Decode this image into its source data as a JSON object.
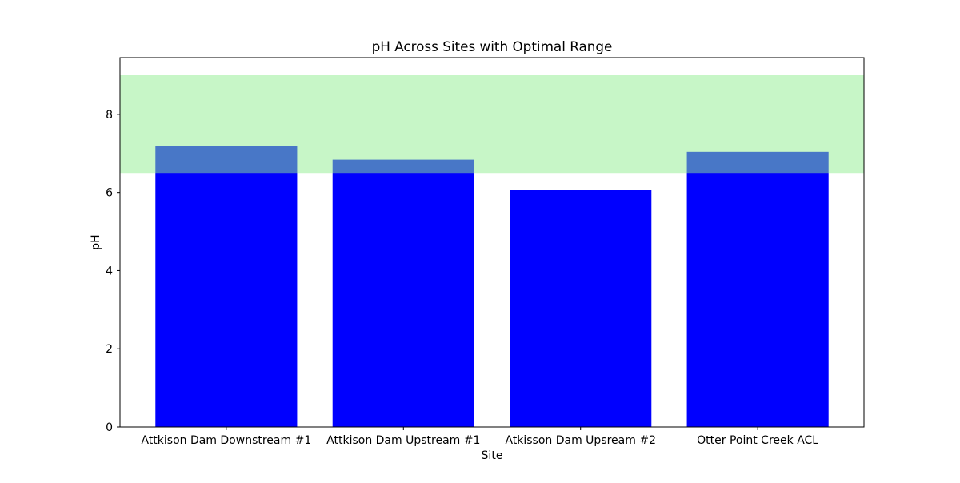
{
  "chart_data": {
    "type": "bar",
    "title": "pH Across Sites with Optimal Range",
    "xlabel": "Site",
    "ylabel": "pH",
    "categories": [
      "Attkison Dam Downstream #1",
      "Attkison Dam Upstream #1",
      "Atkisson Dam Upsream #2",
      "Otter Point Creek ACL"
    ],
    "values": [
      7.18,
      6.84,
      6.06,
      7.04
    ],
    "ylim": [
      0,
      9.45
    ],
    "yticks": [
      0,
      2,
      4,
      6,
      8
    ],
    "optimal_range": [
      6.5,
      9.0
    ],
    "grid": false,
    "legend": "none",
    "colors": {
      "bar": "#0000ff",
      "optimal_band": "#90ee90",
      "optimal_band_opacity": 0.5
    }
  }
}
